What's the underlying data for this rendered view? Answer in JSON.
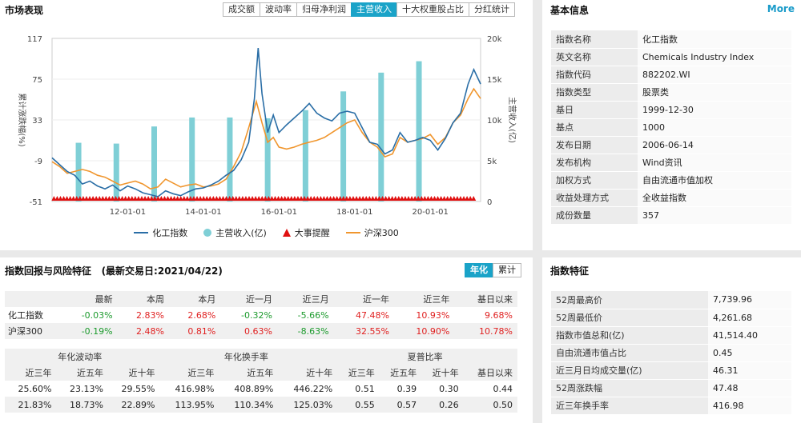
{
  "market": {
    "title": "市场表现",
    "tabs": [
      "成交额",
      "波动率",
      "归母净利润",
      "主营收入",
      "十大权重股占比",
      "分红统计"
    ],
    "active_tab": 3,
    "legend": {
      "index": "化工指数",
      "revenue": "主营收入(亿)",
      "event": "大事提醒",
      "hs300": "沪深300"
    },
    "colors": {
      "index": "#2a6ea6",
      "revenue": "#7fcfd6",
      "event": "#e01010",
      "hs300": "#f0962e"
    }
  },
  "chart_data": {
    "type": "line",
    "ylabel": "累计涨跌幅(%)",
    "y2label": "主营收入(亿)",
    "y_ticks": [
      "117",
      "75",
      "33",
      "-9",
      "-51"
    ],
    "y2_ticks": [
      "20k",
      "15k",
      "10k",
      "5k",
      "0"
    ],
    "x_ticks": [
      "12-01-01",
      "14-01-01",
      "16-01-01",
      "18-01-01",
      "20-01-01"
    ],
    "ylim": [
      -51,
      117
    ],
    "y2lim": [
      0,
      20000
    ],
    "xlim": [
      2010.0,
      2021.33
    ],
    "revenue_bars": [
      {
        "x": 2010.7,
        "y": 7200
      },
      {
        "x": 2011.7,
        "y": 7100
      },
      {
        "x": 2012.7,
        "y": 9200
      },
      {
        "x": 2013.7,
        "y": 10300
      },
      {
        "x": 2014.7,
        "y": 10300
      },
      {
        "x": 2015.7,
        "y": 10200
      },
      {
        "x": 2016.7,
        "y": 11200
      },
      {
        "x": 2017.7,
        "y": 13500
      },
      {
        "x": 2018.7,
        "y": 15800
      },
      {
        "x": 2019.7,
        "y": 17200
      }
    ],
    "series": [
      {
        "name": "化工指数",
        "points": [
          [
            2010.0,
            -6
          ],
          [
            2010.2,
            -13
          ],
          [
            2010.4,
            -20
          ],
          [
            2010.6,
            -24
          ],
          [
            2010.8,
            -33
          ],
          [
            2011.0,
            -30
          ],
          [
            2011.2,
            -35
          ],
          [
            2011.4,
            -38
          ],
          [
            2011.6,
            -34
          ],
          [
            2011.8,
            -40
          ],
          [
            2012.0,
            -35
          ],
          [
            2012.2,
            -38
          ],
          [
            2012.4,
            -42
          ],
          [
            2012.6,
            -44
          ],
          [
            2012.8,
            -46
          ],
          [
            2013.0,
            -40
          ],
          [
            2013.2,
            -43
          ],
          [
            2013.4,
            -45
          ],
          [
            2013.6,
            -41
          ],
          [
            2013.8,
            -38
          ],
          [
            2014.0,
            -37
          ],
          [
            2014.2,
            -34
          ],
          [
            2014.4,
            -30
          ],
          [
            2014.6,
            -24
          ],
          [
            2014.8,
            -19
          ],
          [
            2015.0,
            -8
          ],
          [
            2015.2,
            10
          ],
          [
            2015.35,
            55
          ],
          [
            2015.45,
            107
          ],
          [
            2015.55,
            60
          ],
          [
            2015.7,
            20
          ],
          [
            2015.85,
            38
          ],
          [
            2016.0,
            20
          ],
          [
            2016.2,
            28
          ],
          [
            2016.4,
            35
          ],
          [
            2016.6,
            42
          ],
          [
            2016.8,
            50
          ],
          [
            2017.0,
            40
          ],
          [
            2017.2,
            35
          ],
          [
            2017.4,
            32
          ],
          [
            2017.6,
            40
          ],
          [
            2017.8,
            42
          ],
          [
            2018.0,
            40
          ],
          [
            2018.2,
            25
          ],
          [
            2018.4,
            10
          ],
          [
            2018.6,
            8
          ],
          [
            2018.8,
            -2
          ],
          [
            2019.0,
            2
          ],
          [
            2019.2,
            20
          ],
          [
            2019.4,
            10
          ],
          [
            2019.6,
            12
          ],
          [
            2019.8,
            15
          ],
          [
            2020.0,
            12
          ],
          [
            2020.2,
            2
          ],
          [
            2020.4,
            14
          ],
          [
            2020.6,
            30
          ],
          [
            2020.8,
            40
          ],
          [
            2021.0,
            70
          ],
          [
            2021.15,
            85
          ],
          [
            2021.33,
            70
          ]
        ]
      },
      {
        "name": "沪深300",
        "points": [
          [
            2010.0,
            -10
          ],
          [
            2010.2,
            -15
          ],
          [
            2010.4,
            -22
          ],
          [
            2010.6,
            -20
          ],
          [
            2010.8,
            -18
          ],
          [
            2011.0,
            -20
          ],
          [
            2011.2,
            -24
          ],
          [
            2011.4,
            -26
          ],
          [
            2011.6,
            -30
          ],
          [
            2011.8,
            -34
          ],
          [
            2012.0,
            -32
          ],
          [
            2012.2,
            -30
          ],
          [
            2012.4,
            -33
          ],
          [
            2012.6,
            -38
          ],
          [
            2012.8,
            -36
          ],
          [
            2013.0,
            -28
          ],
          [
            2013.2,
            -32
          ],
          [
            2013.4,
            -36
          ],
          [
            2013.6,
            -34
          ],
          [
            2013.8,
            -33
          ],
          [
            2014.0,
            -36
          ],
          [
            2014.2,
            -35
          ],
          [
            2014.4,
            -33
          ],
          [
            2014.6,
            -28
          ],
          [
            2014.8,
            -15
          ],
          [
            2015.0,
            0
          ],
          [
            2015.2,
            25
          ],
          [
            2015.4,
            52
          ],
          [
            2015.55,
            30
          ],
          [
            2015.7,
            10
          ],
          [
            2015.85,
            15
          ],
          [
            2016.0,
            5
          ],
          [
            2016.2,
            3
          ],
          [
            2016.4,
            5
          ],
          [
            2016.6,
            8
          ],
          [
            2016.8,
            10
          ],
          [
            2017.0,
            12
          ],
          [
            2017.2,
            15
          ],
          [
            2017.4,
            20
          ],
          [
            2017.6,
            25
          ],
          [
            2017.8,
            30
          ],
          [
            2018.0,
            33
          ],
          [
            2018.2,
            20
          ],
          [
            2018.4,
            10
          ],
          [
            2018.6,
            5
          ],
          [
            2018.8,
            -5
          ],
          [
            2019.0,
            -2
          ],
          [
            2019.2,
            15
          ],
          [
            2019.4,
            10
          ],
          [
            2019.6,
            12
          ],
          [
            2019.8,
            14
          ],
          [
            2020.0,
            18
          ],
          [
            2020.2,
            8
          ],
          [
            2020.4,
            15
          ],
          [
            2020.6,
            30
          ],
          [
            2020.8,
            38
          ],
          [
            2021.0,
            55
          ],
          [
            2021.15,
            65
          ],
          [
            2021.33,
            55
          ]
        ]
      }
    ]
  },
  "basic": {
    "title": "基本信息",
    "more": "More",
    "rows": [
      {
        "k": "指数名称",
        "v": "化工指数"
      },
      {
        "k": "英文名称",
        "v": "Chemicals Industry Index"
      },
      {
        "k": "指数代码",
        "v": "882202.WI"
      },
      {
        "k": "指数类型",
        "v": "股票类"
      },
      {
        "k": "基日",
        "v": "1999-12-30"
      },
      {
        "k": "基点",
        "v": "1000"
      },
      {
        "k": "发布日期",
        "v": "2006-06-14"
      },
      {
        "k": "发布机构",
        "v": "Wind资讯"
      },
      {
        "k": "加权方式",
        "v": "自由流通市值加权"
      },
      {
        "k": "收益处理方式",
        "v": "全收益指数"
      },
      {
        "k": "成份数量",
        "v": "357"
      }
    ]
  },
  "returns": {
    "title": "指数回报与风险特征",
    "subtitle": "(最新交易日:2021/04/22)",
    "btn_annual": "年化",
    "btn_cumulative": "累计",
    "headers": [
      "",
      "最新",
      "本周",
      "本月",
      "近一月",
      "近三月",
      "近一年",
      "近三年",
      "基日以来"
    ],
    "rows": [
      {
        "name": "化工指数",
        "vals": [
          "-0.03%",
          "2.83%",
          "2.68%",
          "-0.32%",
          "-5.66%",
          "47.48%",
          "10.93%",
          "9.68%"
        ],
        "cls": [
          "green",
          "red",
          "red",
          "green",
          "green",
          "red",
          "red",
          "red"
        ]
      },
      {
        "name": "沪深300",
        "vals": [
          "-0.19%",
          "2.48%",
          "0.81%",
          "0.63%",
          "-8.63%",
          "32.55%",
          "10.90%",
          "10.78%"
        ],
        "cls": [
          "green",
          "red",
          "red",
          "red",
          "green",
          "red",
          "red",
          "red"
        ]
      }
    ],
    "group_headers": [
      "年化波动率",
      "年化换手率",
      "夏普比率"
    ],
    "sub_headers": [
      "近三年",
      "近五年",
      "近十年",
      "近三年",
      "近五年",
      "近十年",
      "近三年",
      "近五年",
      "近十年",
      "基日以来"
    ],
    "risk_rows": [
      [
        "25.60%",
        "23.13%",
        "29.55%",
        "416.98%",
        "408.89%",
        "446.22%",
        "0.51",
        "0.39",
        "0.30",
        "0.44"
      ],
      [
        "21.83%",
        "18.73%",
        "22.89%",
        "113.95%",
        "110.34%",
        "125.03%",
        "0.55",
        "0.57",
        "0.26",
        "0.50"
      ]
    ]
  },
  "features": {
    "title": "指数特征",
    "rows": [
      {
        "k": "52周最高价",
        "v": "7,739.96"
      },
      {
        "k": "52周最低价",
        "v": "4,261.68"
      },
      {
        "k": "指数市值总和(亿)",
        "v": "41,514.40"
      },
      {
        "k": "自由流通市值占比",
        "v": "0.45"
      },
      {
        "k": "近三月日均成交量(亿)",
        "v": "46.31"
      },
      {
        "k": "52周涨跌幅",
        "v": "47.48"
      },
      {
        "k": "近三年换手率",
        "v": "416.98"
      }
    ]
  }
}
